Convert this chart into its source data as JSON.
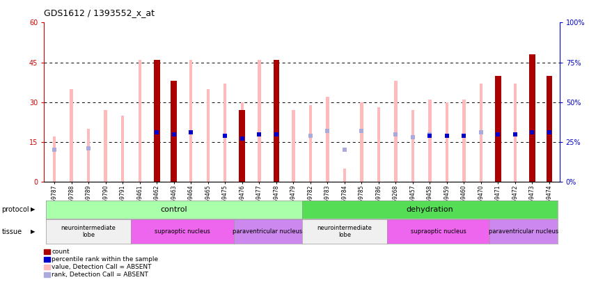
{
  "title": "GDS1612 / 1393552_x_at",
  "samples": [
    "GSM69787",
    "GSM69788",
    "GSM69789",
    "GSM69790",
    "GSM69791",
    "GSM69461",
    "GSM69462",
    "GSM69463",
    "GSM69464",
    "GSM69465",
    "GSM69475",
    "GSM69476",
    "GSM69477",
    "GSM69478",
    "GSM69479",
    "GSM69782",
    "GSM69783",
    "GSM69784",
    "GSM69785",
    "GSM69786",
    "GSM69268",
    "GSM69457",
    "GSM69458",
    "GSM69459",
    "GSM69460",
    "GSM69470",
    "GSM69471",
    "GSM69472",
    "GSM69473",
    "GSM69474"
  ],
  "count_values": [
    0,
    0,
    0,
    0,
    0,
    0,
    46,
    38,
    0,
    0,
    0,
    27,
    0,
    46,
    0,
    0,
    0,
    0,
    0,
    0,
    0,
    0,
    0,
    0,
    0,
    0,
    40,
    0,
    48,
    40
  ],
  "rank_markers": [
    0,
    0,
    0,
    0,
    0,
    0,
    31,
    30,
    31,
    0,
    29,
    27,
    30,
    30,
    0,
    0,
    0,
    0,
    0,
    0,
    0,
    0,
    29,
    29,
    29,
    0,
    30,
    30,
    31,
    31
  ],
  "absent_value_bars": [
    17,
    35,
    20,
    27,
    25,
    46,
    46,
    38,
    46,
    35,
    37,
    30,
    46,
    46,
    27,
    29,
    32,
    5,
    30,
    28,
    38,
    27,
    31,
    30,
    31,
    37,
    40,
    37,
    46,
    40
  ],
  "absent_rank_markers": [
    20,
    0,
    21,
    0,
    0,
    0,
    0,
    0,
    0,
    0,
    0,
    0,
    0,
    0,
    0,
    29,
    32,
    20,
    32,
    0,
    30,
    28,
    30,
    29,
    29,
    31,
    0,
    0,
    0,
    0
  ],
  "protocol_groups": [
    {
      "label": "control",
      "start": 0,
      "end": 14,
      "color": "#AAFFAA"
    },
    {
      "label": "dehydration",
      "start": 15,
      "end": 29,
      "color": "#55DD55"
    }
  ],
  "tissue_groups": [
    {
      "label": "neurointermediate\nlobe",
      "start": 0,
      "end": 4,
      "color": "#F0F0F0"
    },
    {
      "label": "supraoptic nucleus",
      "start": 5,
      "end": 10,
      "color": "#EE66EE"
    },
    {
      "label": "paraventricular nucleus",
      "start": 11,
      "end": 14,
      "color": "#CC88EE"
    },
    {
      "label": "neurointermediate\nlobe",
      "start": 15,
      "end": 19,
      "color": "#F0F0F0"
    },
    {
      "label": "supraoptic nucleus",
      "start": 20,
      "end": 25,
      "color": "#EE66EE"
    },
    {
      "label": "paraventricular nucleus",
      "start": 26,
      "end": 29,
      "color": "#CC88EE"
    }
  ],
  "left_ylim": [
    0,
    60
  ],
  "right_ylim": [
    0,
    100
  ],
  "left_yticks": [
    0,
    15,
    30,
    45,
    60
  ],
  "right_yticks": [
    0,
    25,
    50,
    75,
    100
  ],
  "left_ycolor": "#CC0000",
  "right_ycolor": "#0000CC",
  "count_color": "#AA0000",
  "rank_marker_color": "#0000CC",
  "absent_value_color": "#FFBBBB",
  "absent_rank_color": "#AAAADD",
  "bg_color": "#ffffff",
  "thin_bar_width": 0.18,
  "count_bar_width": 0.35,
  "legend_items": [
    {
      "label": "count",
      "color": "#AA0000"
    },
    {
      "label": "percentile rank within the sample",
      "color": "#0000CC"
    },
    {
      "label": "value, Detection Call = ABSENT",
      "color": "#FFBBBB"
    },
    {
      "label": "rank, Detection Call = ABSENT",
      "color": "#AAAADD"
    }
  ]
}
